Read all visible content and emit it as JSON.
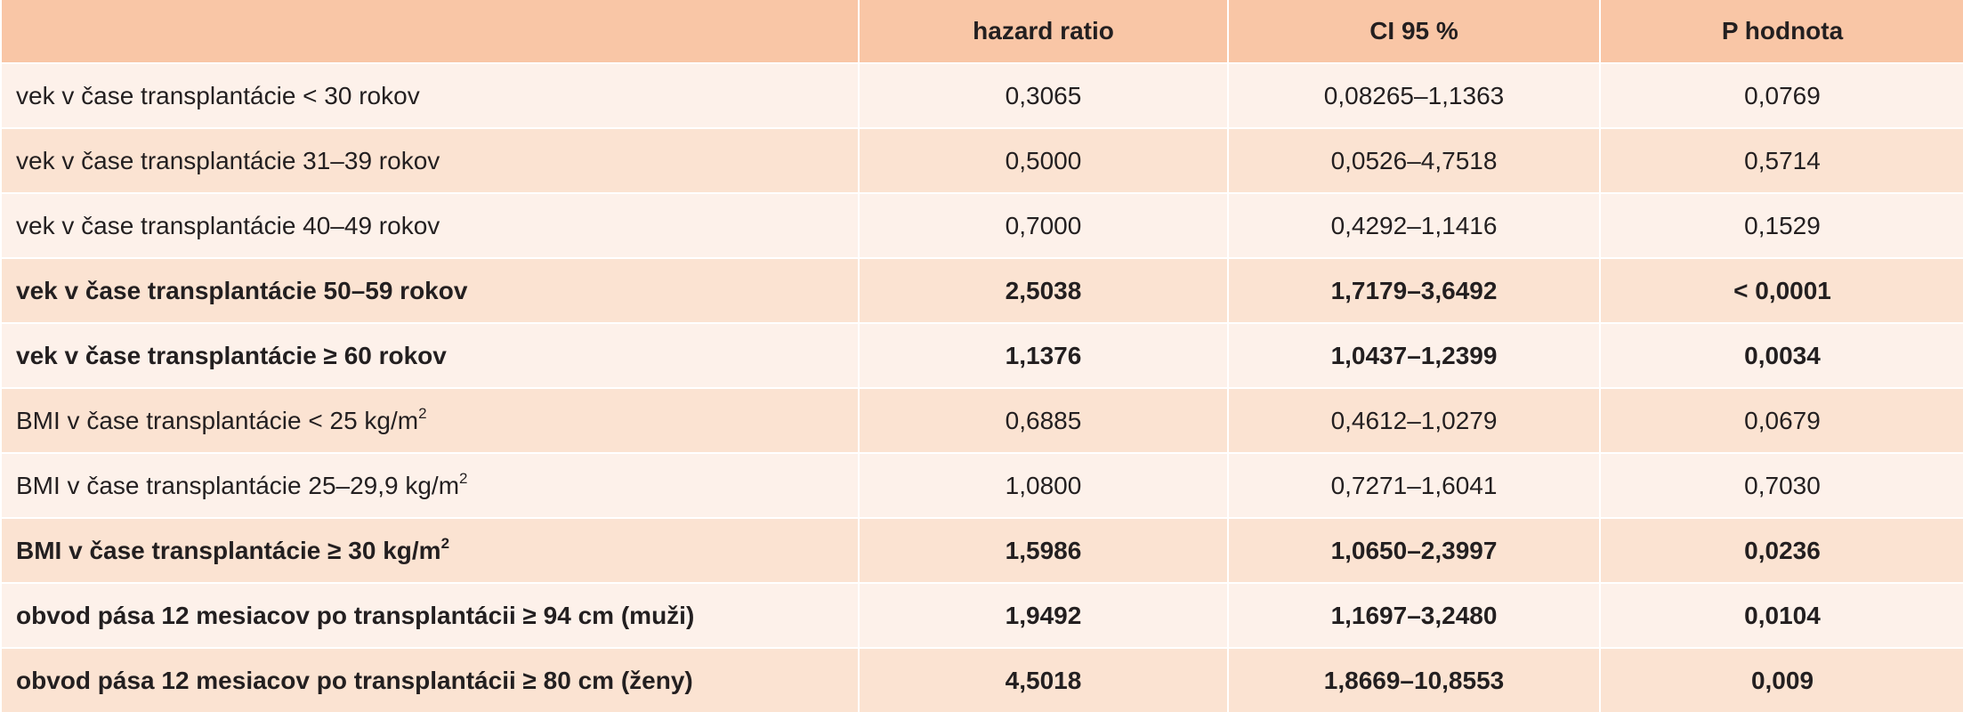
{
  "table": {
    "header": [
      "",
      "hazard ratio",
      "CI 95 %",
      "P hodnota"
    ],
    "rows": [
      {
        "label": "vek v čase transplantácie < 30 rokov",
        "values": [
          "0,3065",
          "0,08265–1,1363",
          "0,0769"
        ],
        "bold": false
      },
      {
        "label": "vek v čase transplantácie 31–39 rokov",
        "values": [
          "0,5000",
          "0,0526–4,7518",
          "0,5714"
        ],
        "bold": false
      },
      {
        "label": "vek v čase transplantácie 40–49 rokov",
        "values": [
          "0,7000",
          "0,4292–1,1416",
          "0,1529"
        ],
        "bold": false
      },
      {
        "label": "vek v čase transplantácie 50–59 rokov",
        "values": [
          "2,5038",
          "1,7179–3,6492",
          "< 0,0001"
        ],
        "bold": true
      },
      {
        "label": "vek v čase transplantácie ≥ 60 rokov",
        "values": [
          "1,1376",
          "1,0437–1,2399",
          "0,0034"
        ],
        "bold": true
      },
      {
        "label": "BMI v čase transplantácie < 25 kg/m",
        "sup": "2",
        "values": [
          "0,6885",
          "0,4612–1,0279",
          "0,0679"
        ],
        "bold": false
      },
      {
        "label": "BMI v čase transplantácie 25–29,9 kg/m",
        "sup": "2",
        "values": [
          "1,0800",
          "0,7271–1,6041",
          "0,7030"
        ],
        "bold": false
      },
      {
        "label": "BMI v čase transplantácie ≥ 30 kg/m",
        "sup": "2",
        "values": [
          "1,5986",
          "1,0650–2,3997",
          "0,0236"
        ],
        "bold": true
      },
      {
        "label": "obvod pása 12 mesiacov po transplantácii ≥ 94 cm (muži)",
        "values": [
          "1,9492",
          "1,1697–3,2480",
          "0,0104"
        ],
        "bold": true
      },
      {
        "label": "obvod pása 12 mesiacov po transplantácii ≥ 80 cm (ženy)",
        "values": [
          "4,5018",
          "1,8669–10,8553",
          "0,009"
        ],
        "bold": true
      }
    ]
  }
}
